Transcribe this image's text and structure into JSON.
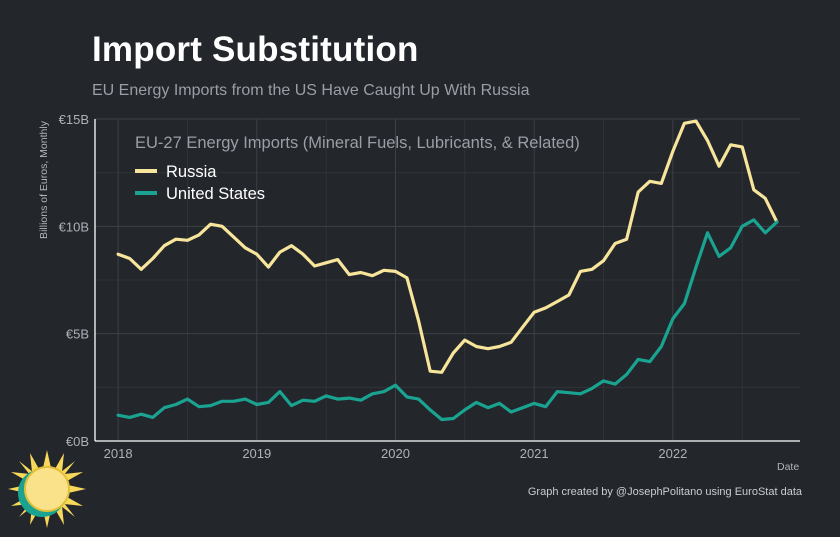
{
  "header": {
    "title": "Import Substitution",
    "subtitle": "EU Energy Imports from the US Have Caught Up With Russia"
  },
  "footer": {
    "caption": "Graph created by @JosephPolitano using EuroStat data"
  },
  "chart_data": {
    "type": "line",
    "title": "Import Substitution",
    "subtitle": "EU Energy Imports from the US Have Caught Up With Russia",
    "legend_title": "EU-27 Energy Imports (Mineral Fuels, Lubricants, & Related)",
    "legend_position": "top-left",
    "xlabel": "Date",
    "ylabel": "Billions of Euros, Monthly",
    "xlim": [
      "2017-11",
      "2022-12"
    ],
    "ylim": [
      0,
      15
    ],
    "x_ticks": [
      {
        "label": "2018",
        "value": 2018
      },
      {
        "label": "2019",
        "value": 2019
      },
      {
        "label": "2020",
        "value": 2020
      },
      {
        "label": "2021",
        "value": 2021
      },
      {
        "label": "2022",
        "value": 2022
      }
    ],
    "y_ticks": [
      {
        "label": "€0B",
        "value": 0
      },
      {
        "label": "€5B",
        "value": 5
      },
      {
        "label": "€10B",
        "value": 10
      },
      {
        "label": "€15B",
        "value": 15
      }
    ],
    "grid": true,
    "x": [
      "2018-01",
      "2018-02",
      "2018-03",
      "2018-04",
      "2018-05",
      "2018-06",
      "2018-07",
      "2018-08",
      "2018-09",
      "2018-10",
      "2018-11",
      "2018-12",
      "2019-01",
      "2019-02",
      "2019-03",
      "2019-04",
      "2019-05",
      "2019-06",
      "2019-07",
      "2019-08",
      "2019-09",
      "2019-10",
      "2019-11",
      "2019-12",
      "2020-01",
      "2020-02",
      "2020-03",
      "2020-04",
      "2020-05",
      "2020-06",
      "2020-07",
      "2020-08",
      "2020-09",
      "2020-10",
      "2020-11",
      "2020-12",
      "2021-01",
      "2021-02",
      "2021-03",
      "2021-04",
      "2021-05",
      "2021-06",
      "2021-07",
      "2021-08",
      "2021-09",
      "2021-10",
      "2021-11",
      "2021-12",
      "2022-01",
      "2022-02",
      "2022-03",
      "2022-04",
      "2022-05",
      "2022-06",
      "2022-07",
      "2022-08",
      "2022-09",
      "2022-10"
    ],
    "series": [
      {
        "name": "Russia",
        "color": "#f7e59b",
        "values": [
          8.7,
          8.5,
          8.0,
          8.5,
          9.1,
          9.4,
          9.35,
          9.6,
          10.1,
          10.0,
          9.5,
          9.0,
          8.7,
          8.1,
          8.8,
          9.1,
          8.7,
          8.15,
          8.3,
          8.45,
          7.75,
          7.85,
          7.7,
          7.95,
          7.9,
          7.6,
          5.6,
          3.25,
          3.2,
          4.1,
          4.7,
          4.4,
          4.3,
          4.4,
          4.6,
          5.3,
          6.0,
          6.2,
          6.5,
          6.8,
          7.9,
          8.0,
          8.4,
          9.2,
          9.4,
          11.6,
          12.1,
          12.0,
          13.5,
          14.8,
          14.9,
          14.0,
          12.8,
          13.8,
          13.7,
          11.7,
          11.3,
          10.2
        ]
      },
      {
        "name": "United States",
        "color": "#1aa391",
        "values": [
          1.2,
          1.1,
          1.25,
          1.1,
          1.55,
          1.7,
          1.95,
          1.6,
          1.65,
          1.85,
          1.85,
          1.95,
          1.7,
          1.8,
          2.3,
          1.65,
          1.9,
          1.85,
          2.1,
          1.95,
          2.0,
          1.9,
          2.2,
          2.3,
          2.6,
          2.05,
          1.95,
          1.45,
          1.0,
          1.05,
          1.45,
          1.8,
          1.55,
          1.75,
          1.35,
          1.55,
          1.75,
          1.6,
          2.3,
          2.25,
          2.2,
          2.45,
          2.8,
          2.65,
          3.1,
          3.8,
          3.7,
          4.4,
          5.7,
          6.4,
          8.1,
          9.7,
          8.6,
          9.0,
          10.0,
          10.3,
          9.7,
          10.2
        ]
      }
    ]
  }
}
